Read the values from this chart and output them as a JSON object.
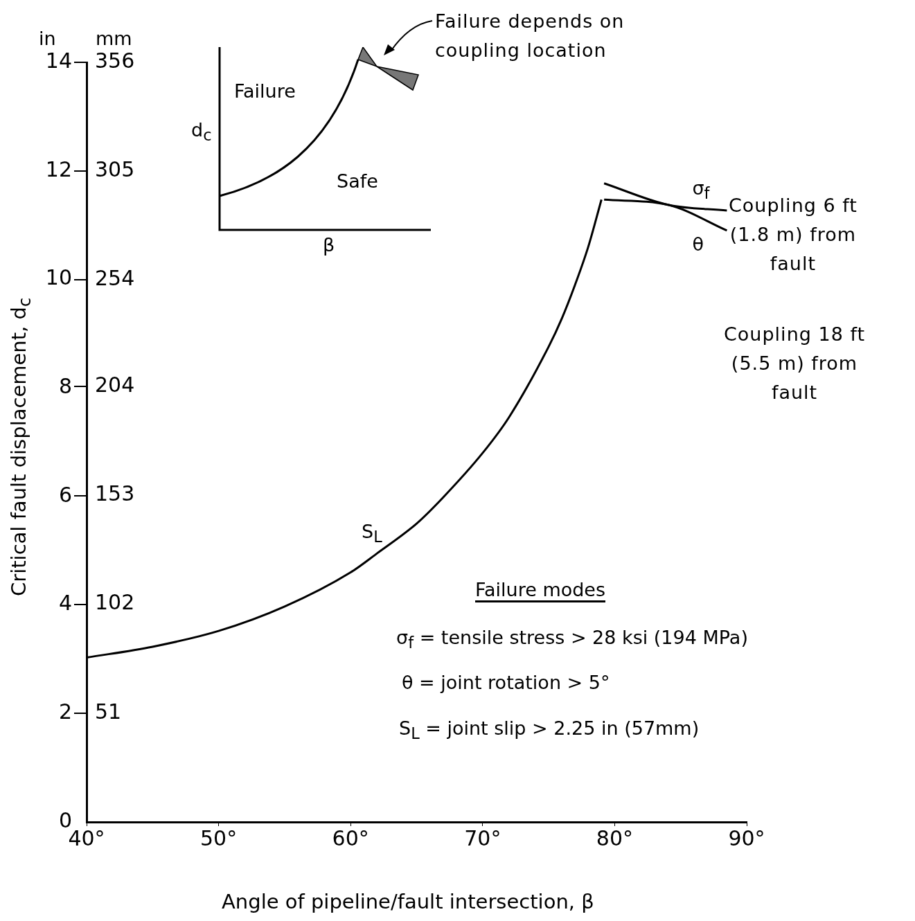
{
  "chart_data": {
    "type": "line",
    "xlabel": "Angle of pipeline/fault intersection, β",
    "ylabel": "Critical fault displacement, d$_{c}$",
    "xlim": [
      40,
      90
    ],
    "xticks": [
      {
        "value": 40,
        "label": "40°"
      },
      {
        "value": 50,
        "label": "50°"
      },
      {
        "value": 60,
        "label": "60°"
      },
      {
        "value": 70,
        "label": "70°"
      },
      {
        "value": 80,
        "label": "80°"
      },
      {
        "value": 90,
        "label": "90°"
      }
    ],
    "ylim": [
      0,
      14
    ],
    "yticks": [
      0,
      2,
      4,
      6,
      8,
      10,
      12,
      14
    ],
    "y2lim": [
      0,
      356
    ],
    "y2ticks": [
      51,
      102,
      153,
      204,
      254,
      305,
      356
    ],
    "grid": false,
    "legend": false,
    "marker": "none",
    "line_style": "solid",
    "series": [
      {
        "color": "#000000",
        "x": [
          40,
          45,
          50,
          55,
          60,
          62,
          65,
          67,
          70,
          72,
          75,
          76,
          77,
          78,
          79
        ],
        "values": [
          3.03,
          3.23,
          3.52,
          3.97,
          4.6,
          4.95,
          5.5,
          5.98,
          6.8,
          7.46,
          8.76,
          9.28,
          9.9,
          10.6,
          11.47
        ]
      },
      {
        "color": "#000000",
        "x": [
          79.2,
          84.1,
          88.5
        ],
        "values": [
          11.77,
          11.37,
          11.27
        ]
      },
      {
        "color": "#000000",
        "x": [
          79.2,
          84.1,
          88.5
        ],
        "values": [
          11.47,
          11.37,
          10.9
        ]
      }
    ],
    "annotations": [
      "in",
      "mm",
      "Failure depends on coupling location",
      "Failure",
      "Safe",
      "d$_{c}$",
      "β",
      {
        "text": "σ$_{f}$",
        "x": 88.5,
        "y": 11.27
      },
      "Coupling 6 ft (1.8 m) from fault",
      {
        "text": "θ",
        "x": 88.5,
        "y": 10.9
      },
      "Coupling 18 ft (5.5 m) from fault",
      "S$_{L}$",
      "Failure modes",
      "σ$_{f}$  =  tensile stress  > 28 ksi (194 MPa)",
      "θ    =  joint rotation  > 5°",
      "S$_{L}$  =  joint slip        > 2.25 in (57mm)"
    ]
  }
}
